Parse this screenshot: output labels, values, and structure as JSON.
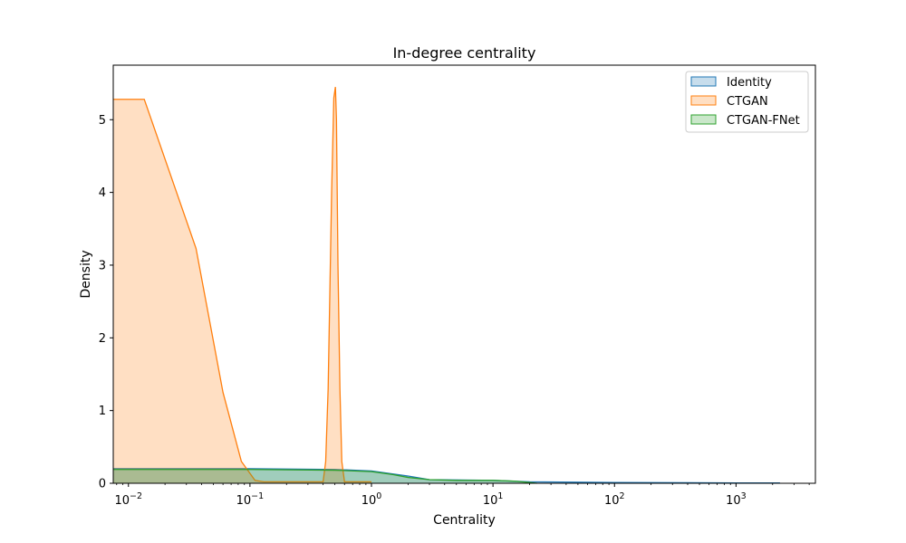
{
  "chart_data": {
    "type": "area",
    "title": "In-degree centrality",
    "xlabel": "Centrality",
    "ylabel": "Density",
    "xscale": "log",
    "xlim": [
      0.0075,
      4500
    ],
    "ylim": [
      0,
      5.75
    ],
    "x_ticks": [
      {
        "value": 0.01,
        "base": "10",
        "exp": "−2"
      },
      {
        "value": 0.1,
        "base": "10",
        "exp": "−1"
      },
      {
        "value": 1,
        "base": "10",
        "exp": "0"
      },
      {
        "value": 10,
        "base": "10",
        "exp": "1"
      },
      {
        "value": 100,
        "base": "10",
        "exp": "2"
      },
      {
        "value": 1000,
        "base": "10",
        "exp": "3"
      }
    ],
    "y_ticks": [
      0,
      1,
      2,
      3,
      4,
      5
    ],
    "legend_position": "top-right",
    "grid": false,
    "series": [
      {
        "name": "Identity",
        "color": "#1f77b4",
        "points": [
          [
            0.0075,
            0.2
          ],
          [
            0.1,
            0.2
          ],
          [
            0.5,
            0.19
          ],
          [
            1,
            0.17
          ],
          [
            2,
            0.1
          ],
          [
            3,
            0.05
          ],
          [
            10,
            0.04
          ],
          [
            20,
            0.02
          ],
          [
            100,
            0.01
          ],
          [
            1000,
            0.005
          ],
          [
            2300,
            0.005
          ]
        ]
      },
      {
        "name": "CTGAN",
        "color": "#ff7f0e",
        "points": [
          [
            0.0075,
            5.28
          ],
          [
            0.0135,
            5.28
          ],
          [
            0.036,
            3.23
          ],
          [
            0.06,
            1.25
          ],
          [
            0.085,
            0.3
          ],
          [
            0.11,
            0.04
          ],
          [
            0.13,
            0.02
          ],
          [
            0.4,
            0.02
          ],
          [
            0.42,
            0.3
          ],
          [
            0.44,
            1.3
          ],
          [
            0.47,
            4.0
          ],
          [
            0.49,
            5.3
          ],
          [
            0.505,
            5.45
          ],
          [
            0.515,
            5.0
          ],
          [
            0.53,
            3.0
          ],
          [
            0.55,
            1.3
          ],
          [
            0.57,
            0.3
          ],
          [
            0.6,
            0.02
          ],
          [
            1,
            0.02
          ]
        ]
      },
      {
        "name": "CTGAN-FNet",
        "color": "#2ca02c",
        "points": [
          [
            0.0075,
            0.19
          ],
          [
            0.1,
            0.19
          ],
          [
            0.5,
            0.18
          ],
          [
            1,
            0.16
          ],
          [
            1.5,
            0.12
          ],
          [
            2,
            0.08
          ],
          [
            3,
            0.05
          ],
          [
            5,
            0.04
          ],
          [
            10,
            0.04
          ],
          [
            15,
            0.03
          ],
          [
            20,
            0.01
          ],
          [
            23,
            0.0
          ]
        ]
      }
    ]
  }
}
